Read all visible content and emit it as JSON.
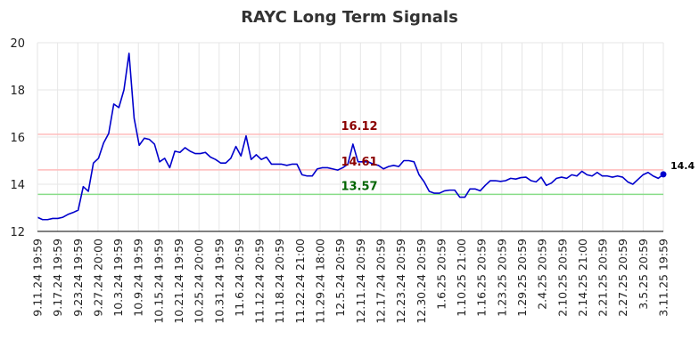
{
  "chart_data": {
    "type": "line",
    "title": "RAYC Long Term Signals",
    "xlabel": "",
    "ylabel": "",
    "ylim": [
      12,
      20
    ],
    "yticks": [
      "12",
      "14",
      "16",
      "18",
      "20"
    ],
    "grid": true,
    "xticks": [
      "9.11.24 19:59",
      "9.17.24 19:59",
      "9.23.24 19:59",
      "9.27.24 20:00",
      "10.3.24 19:59",
      "10.9.24 19:59",
      "10.15.24 19:59",
      "10.21.24 19:59",
      "10.25.24 20:00",
      "10.31.24 19:59",
      "11.6.24 20:59",
      "11.12.24 20:59",
      "11.18.24 20:59",
      "11.22.24 21:00",
      "11.29.24 18:00",
      "12.5.24 20:59",
      "12.11.24 20:59",
      "12.17.24 20:59",
      "12.23.24 20:59",
      "12.30.24 20:59",
      "1.6.25 20:59",
      "1.10.25 21:00",
      "1.16.25 20:59",
      "1.23.25 20:59",
      "1.29.25 20:59",
      "2.4.25 20:59",
      "2.10.25 20:59",
      "2.14.25 21:00",
      "2.21.25 20:59",
      "2.27.25 20:59",
      "3.5.25 20:59",
      "3.11.25 19:59"
    ],
    "series": [
      {
        "color": "#0000cc",
        "values": [
          12.6,
          12.5,
          12.5,
          12.55,
          12.55,
          12.6,
          12.72,
          12.8,
          12.9,
          13.9,
          13.7,
          14.9,
          15.1,
          15.75,
          16.15,
          17.4,
          17.25,
          18.0,
          19.55,
          16.8,
          15.65,
          15.95,
          15.9,
          15.7,
          14.95,
          15.1,
          14.7,
          15.4,
          15.35,
          15.55,
          15.4,
          15.3,
          15.3,
          15.35,
          15.15,
          15.05,
          14.9,
          14.9,
          15.1,
          15.6,
          15.2,
          16.05,
          15.05,
          15.25,
          15.05,
          15.15,
          14.85,
          14.85,
          14.85,
          14.8,
          14.85,
          14.85,
          14.4,
          14.35,
          14.35,
          14.65,
          14.7,
          14.7,
          14.65,
          14.6,
          14.7,
          14.85,
          15.7,
          14.95,
          14.95,
          14.95,
          14.85,
          14.8,
          14.65,
          14.75,
          14.8,
          14.75,
          15.0,
          15.0,
          14.95,
          14.4,
          14.1,
          13.7,
          13.62,
          13.62,
          13.72,
          13.75,
          13.75,
          13.45,
          13.45,
          13.8,
          13.8,
          13.72,
          13.95,
          14.15,
          14.15,
          14.12,
          14.15,
          14.25,
          14.22,
          14.28,
          14.3,
          14.15,
          14.1,
          14.3,
          13.95,
          14.05,
          14.25,
          14.3,
          14.25,
          14.4,
          14.35,
          14.55,
          14.4,
          14.35,
          14.5,
          14.35,
          14.35,
          14.3,
          14.35,
          14.3,
          14.1,
          14.0,
          14.2,
          14.4,
          14.5,
          14.35,
          14.25,
          14.42
        ]
      }
    ],
    "signals": [
      {
        "value": 16.12,
        "label": "16.12",
        "line_color": "#ffbbbb",
        "text_color": "#8b0000"
      },
      {
        "value": 14.61,
        "label": "14.61",
        "line_color": "#ffbbbb",
        "text_color": "#8b0000"
      },
      {
        "value": 13.57,
        "label": "13.57",
        "line_color": "#88dd88",
        "text_color": "#006400"
      }
    ],
    "last_value_label": "14.4"
  }
}
